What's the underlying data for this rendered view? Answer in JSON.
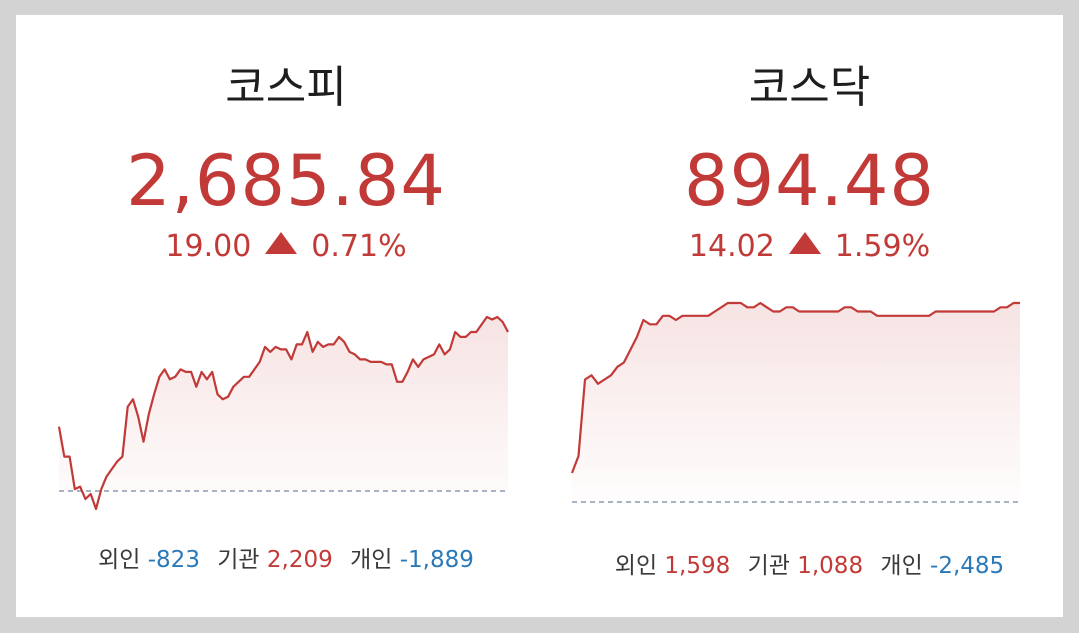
{
  "kospi": {
    "name": "코스피",
    "value": "2,685.84",
    "change": "19.00",
    "change_pct": "0.71%",
    "direction": "up",
    "series": [
      58,
      46,
      46,
      33,
      34,
      29,
      31,
      25,
      33,
      38,
      41,
      44,
      46,
      66,
      69,
      62,
      52,
      63,
      71,
      78,
      81,
      77,
      78,
      81,
      80,
      80,
      74,
      80,
      77,
      80,
      71,
      69,
      70,
      74,
      76,
      78,
      78,
      81,
      84,
      90,
      88,
      90,
      89,
      89,
      85,
      91,
      91,
      96,
      88,
      92,
      90,
      91,
      91,
      94,
      92,
      88,
      87,
      85,
      85,
      84,
      84,
      84,
      83,
      83,
      76,
      76,
      80,
      85,
      82,
      85,
      86,
      87,
      91,
      87,
      89,
      96,
      94,
      94,
      96,
      96,
      99,
      102,
      101,
      102,
      100,
      96
    ],
    "series_color": "#c23a37",
    "baseline_color": "#8a9bb0",
    "investors": {
      "foreign_label": "외인",
      "foreign_value": "-823",
      "institution_label": "기관",
      "institution_value": "2,209",
      "individual_label": "개인",
      "individual_value": "-1,889"
    }
  },
  "kosdaq": {
    "name": "코스닥",
    "value": "894.48",
    "change": "14.02",
    "change_pct": "1.59%",
    "direction": "up",
    "series": [
      0,
      4,
      22,
      23,
      21,
      22,
      23,
      25,
      26,
      29,
      32,
      36,
      35,
      35,
      37,
      37,
      36,
      37,
      37,
      37,
      37,
      37,
      38,
      39,
      40,
      40,
      40,
      39,
      39,
      40,
      39,
      38,
      38,
      39,
      39,
      38,
      38,
      38,
      38,
      38,
      38,
      38,
      39,
      39,
      38,
      38,
      38,
      37,
      37,
      37,
      37,
      37,
      37,
      37,
      37,
      37,
      38,
      38,
      38,
      38,
      38,
      38,
      38,
      38,
      38,
      38,
      39,
      39,
      40,
      40
    ],
    "series_color": "#c23a37",
    "baseline_color": "#8a9bb0",
    "investors": {
      "foreign_label": "외인",
      "foreign_value": "1,598",
      "institution_label": "기관",
      "institution_value": "1,088",
      "individual_label": "개인",
      "individual_value": "-2,485"
    }
  }
}
